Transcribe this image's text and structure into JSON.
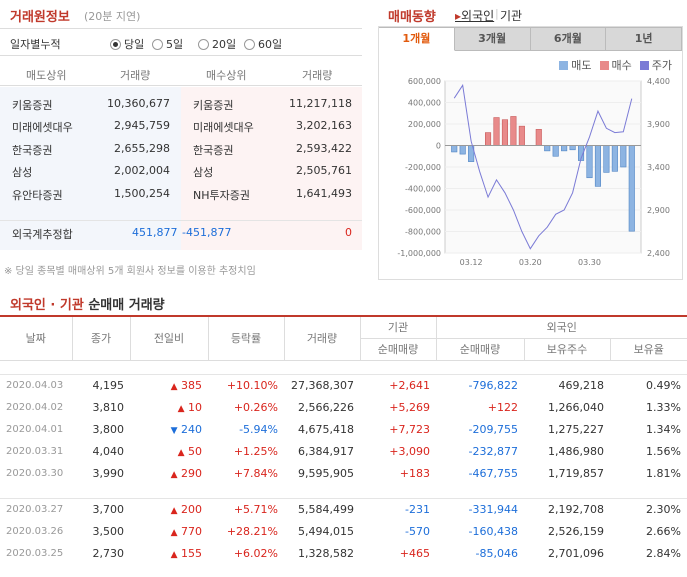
{
  "broker": {
    "title": "거래원정보",
    "delay": "(20분 지연)",
    "cumulative_label": "일자별누적",
    "options": [
      "당일",
      "5일",
      "20일",
      "60일"
    ],
    "selected": 0,
    "headers": [
      "매도상위",
      "거래량",
      "매수상위",
      "거래량"
    ],
    "rows": [
      {
        "sell": "키움증권",
        "sell_vol": "10,360,677",
        "buy": "키움증권",
        "buy_vol": "11,217,118"
      },
      {
        "sell": "미래에셋대우",
        "sell_vol": "2,945,759",
        "buy": "미래에셋대우",
        "buy_vol": "3,202,163"
      },
      {
        "sell": "한국증권",
        "sell_vol": "2,655,298",
        "buy": "한국증권",
        "buy_vol": "2,593,422"
      },
      {
        "sell": "삼성",
        "sell_vol": "2,002,004",
        "buy": "삼성",
        "buy_vol": "2,505,761"
      },
      {
        "sell": "유안타증권",
        "sell_vol": "1,500,254",
        "buy": "NH투자증권",
        "buy_vol": "1,641,493"
      }
    ],
    "foreign": {
      "label": "외국계추정합",
      "sell": "451,877",
      "diff": "-451,877",
      "buy": "0"
    },
    "note": "※ 당일 종목별 매매상위 5개 회원사 정보를 이용한 추정치임"
  },
  "trend": {
    "title": "매매동향",
    "tabs": [
      "외국인",
      "기관"
    ],
    "periods": [
      "1개월",
      "3개월",
      "6개월",
      "1년"
    ],
    "active_period": 0,
    "legend": [
      "매도",
      "매수",
      "주가"
    ]
  },
  "colors": {
    "sell": "#8db4e2",
    "buy": "#e88a8a",
    "price": "#7b7bd6",
    "accent": "#c0392b"
  },
  "chart_data": {
    "type": "bar",
    "y_left_ticks": [
      "600,000",
      "400,000",
      "200,000",
      "0",
      "-200,000",
      "-400,000",
      "-600,000",
      "-800,000",
      "-1,000,000"
    ],
    "y_right_ticks": [
      "4,400",
      "3,900",
      "3,400",
      "2,900",
      "2,400"
    ],
    "x_ticks": [
      "03.12",
      "03.20",
      "03.30"
    ],
    "ylim": [
      -1000000,
      600000
    ],
    "ylim_right": [
      2400,
      4400
    ],
    "series": [
      {
        "name": "순매매량",
        "values": [
          -60000,
          -80000,
          -150000,
          0,
          120000,
          260000,
          240000,
          270000,
          180000,
          0,
          150000,
          -50000,
          -100000,
          -50000,
          -40000,
          -140000,
          -300000,
          -380000,
          -250000,
          -240000,
          -200000,
          -797000
        ]
      },
      {
        "name": "주가",
        "values": [
          4200,
          4350,
          3700,
          3350,
          3050,
          3250,
          3100,
          2900,
          2650,
          2450,
          2600,
          2700,
          2850,
          2900,
          3100,
          3500,
          3750,
          4050,
          3850,
          3800,
          3810,
          4195
        ]
      }
    ]
  },
  "investor": {
    "title_a": "외국인 · 기관",
    "title_b": "순매매 거래량",
    "headers": {
      "date": "날짜",
      "close": "종가",
      "change": "전일비",
      "rate": "등락률",
      "volume": "거래량",
      "inst": "기관",
      "foreign": "외국인",
      "inst_net": "순매매량",
      "for_net": "순매매량",
      "holdings": "보유주수",
      "ratio": "보유율"
    },
    "rows": [
      {
        "date": "2020.04.03",
        "close": "4,195",
        "dir": "up",
        "change": "385",
        "rate": "+10.10%",
        "volume": "27,368,307",
        "inst": "+2,641",
        "foreign": "-796,822",
        "holdings": "469,218",
        "ratio": "0.49%"
      },
      {
        "date": "2020.04.02",
        "close": "3,810",
        "dir": "up",
        "change": "10",
        "rate": "+0.26%",
        "volume": "2,566,226",
        "inst": "+5,269",
        "foreign": "+122",
        "holdings": "1,266,040",
        "ratio": "1.33%"
      },
      {
        "date": "2020.04.01",
        "close": "3,800",
        "dir": "down",
        "change": "240",
        "rate": "-5.94%",
        "volume": "4,675,418",
        "inst": "+7,723",
        "foreign": "-209,755",
        "holdings": "1,275,227",
        "ratio": "1.34%"
      },
      {
        "date": "2020.03.31",
        "close": "4,040",
        "dir": "up",
        "change": "50",
        "rate": "+1.25%",
        "volume": "6,384,917",
        "inst": "+3,090",
        "foreign": "-232,877",
        "holdings": "1,486,980",
        "ratio": "1.56%"
      },
      {
        "date": "2020.03.30",
        "close": "3,990",
        "dir": "up",
        "change": "290",
        "rate": "+7.84%",
        "volume": "9,595,905",
        "inst": "+183",
        "foreign": "-467,755",
        "holdings": "1,719,857",
        "ratio": "1.81%"
      },
      {
        "date": "2020.03.27",
        "close": "3,700",
        "dir": "up",
        "change": "200",
        "rate": "+5.71%",
        "volume": "5,584,499",
        "inst": "-231",
        "foreign": "-331,944",
        "holdings": "2,192,708",
        "ratio": "2.30%"
      },
      {
        "date": "2020.03.26",
        "close": "3,500",
        "dir": "up",
        "change": "770",
        "rate": "+28.21%",
        "volume": "5,494,015",
        "inst": "-570",
        "foreign": "-160,438",
        "holdings": "2,526,159",
        "ratio": "2.66%"
      },
      {
        "date": "2020.03.25",
        "close": "2,730",
        "dir": "up",
        "change": "155",
        "rate": "+6.02%",
        "volume": "1,328,582",
        "inst": "+465",
        "foreign": "-85,046",
        "holdings": "2,701,096",
        "ratio": "2.84%"
      }
    ]
  }
}
